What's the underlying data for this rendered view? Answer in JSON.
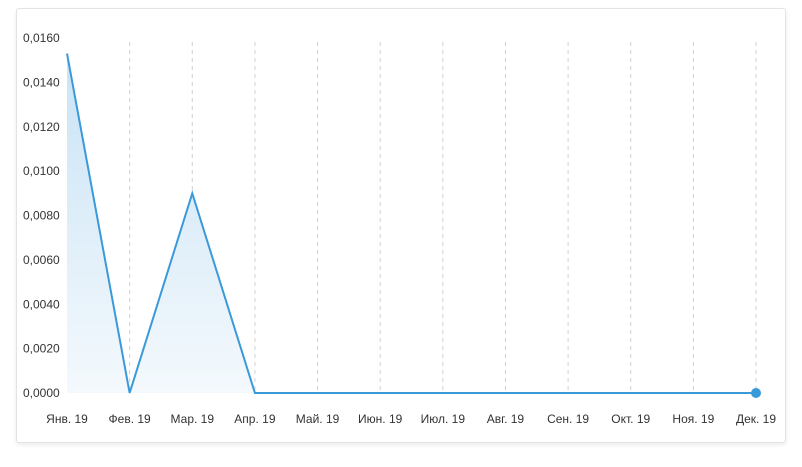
{
  "chart_data": {
    "type": "area",
    "categories": [
      "Янв. 19",
      "Фев. 19",
      "Мар. 19",
      "Апр. 19",
      "Май. 19",
      "Июн. 19",
      "Июл. 19",
      "Авг. 19",
      "Сен. 19",
      "Окт. 19",
      "Ноя. 19",
      "Дек. 19"
    ],
    "series": [
      {
        "values": [
          0.0153,
          0.0,
          0.009,
          0.0,
          0.0,
          0.0,
          0.0,
          0.0,
          0.0,
          0.0,
          0.0,
          0.0
        ],
        "color": "#3a9ad9"
      }
    ],
    "y_ticks": [
      "0,0000",
      "0,0020",
      "0,0040",
      "0,0060",
      "0,0080",
      "0,0100",
      "0,0120",
      "0,0140",
      "0,0160"
    ],
    "ylim": [
      0,
      0.016
    ],
    "grid": "vertical-dashed",
    "title": "",
    "xlabel": "",
    "ylabel": "",
    "colors": {
      "line": "#3a9ad9",
      "fill_top": "#c9e3f5",
      "fill_bottom": "#f4f9fd",
      "grid": "#d0d0d0",
      "text": "#333333"
    }
  }
}
